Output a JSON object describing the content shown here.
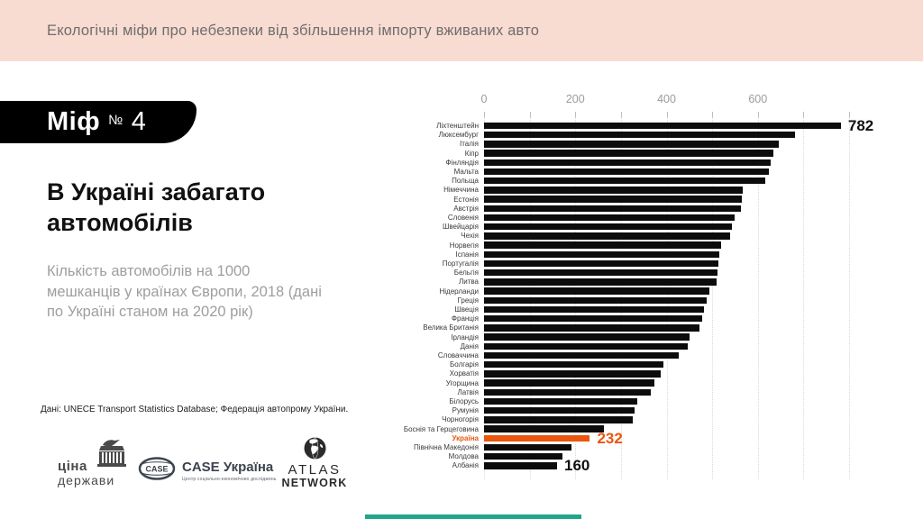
{
  "header": {
    "title": "Екологічні міфи про небезпеки від збільшення імпорту вживаних авто",
    "bg_color": "#f8dbd1",
    "text_color": "#6e6e6e"
  },
  "badge": {
    "word": "Міф",
    "numero": "№",
    "number": "4",
    "bg_color": "#000000",
    "text_color": "#ffffff"
  },
  "intro": {
    "title": "В Україні забагато автомобілів",
    "subtitle": "Кількість автомобілів на 1000 мешканців у країнах Європи, 2018 (дані по Україні станом на 2020 рік)",
    "source": "Дані: UNECE Transport Statistics Database; Федерація автопрому України."
  },
  "logos": {
    "cina_derzhavy": {
      "line1": "ціна",
      "line2": "держави"
    },
    "case": {
      "oval_text": "CASE",
      "title": "CASE Україна",
      "subtitle": "Центр соціально-економічних досліджень"
    },
    "atlas": {
      "line1": "ATLAS",
      "line2": "NETWORK"
    }
  },
  "footer": {
    "accent_bar_color": "#1fa588"
  },
  "chart_data": {
    "type": "bar",
    "orientation": "horizontal",
    "title": "Кількість автомобілів на 1000 мешканців у країнах Європи, 2018",
    "xlim": [
      0,
      800
    ],
    "x_ticks": [
      0,
      200,
      400,
      600
    ],
    "grid_step": 100,
    "grid": "vertical-dotted",
    "legend": "none",
    "bar_color": "#0c0c0c",
    "label_color": "#3a3a3a",
    "highlight": {
      "category": "Україна",
      "color": "#e8570d"
    },
    "categories": [
      "Ліхтенштейн",
      "Люксембург",
      "Італія",
      "Кіпр",
      "Фінляндія",
      "Мальта",
      "Польща",
      "Німеччина",
      "Естонія",
      "Австрія",
      "Словенія",
      "Швейцарія",
      "Чехія",
      "Норвегія",
      "Іспанія",
      "Португалія",
      "Бельгія",
      "Литва",
      "Нідерланди",
      "Греція",
      "Швеція",
      "Франція",
      "Велика Британія",
      "Ірландія",
      "Данія",
      "Словаччина",
      "Болгарія",
      "Хорватія",
      "Угорщина",
      "Латвія",
      "Білорусь",
      "Румунія",
      "Чорногорія",
      "Боснія та Герцеговина",
      "Україна",
      "Північна Македонія",
      "Молдова",
      "Албанія"
    ],
    "values": [
      782,
      681,
      646,
      634,
      629,
      625,
      617,
      567,
      565,
      562,
      550,
      543,
      540,
      520,
      516,
      514,
      512,
      510,
      494,
      488,
      481,
      478,
      473,
      451,
      447,
      426,
      393,
      387,
      373,
      365,
      335,
      330,
      326,
      262,
      232,
      192,
      172,
      160
    ],
    "value_labels": [
      {
        "category": "Ліхтенштейн",
        "text": "782",
        "color": "#111111"
      },
      {
        "category": "Україна",
        "text": "232",
        "color": "#e8570d"
      },
      {
        "category": "Албанія",
        "text": "160",
        "color": "#111111"
      }
    ]
  }
}
